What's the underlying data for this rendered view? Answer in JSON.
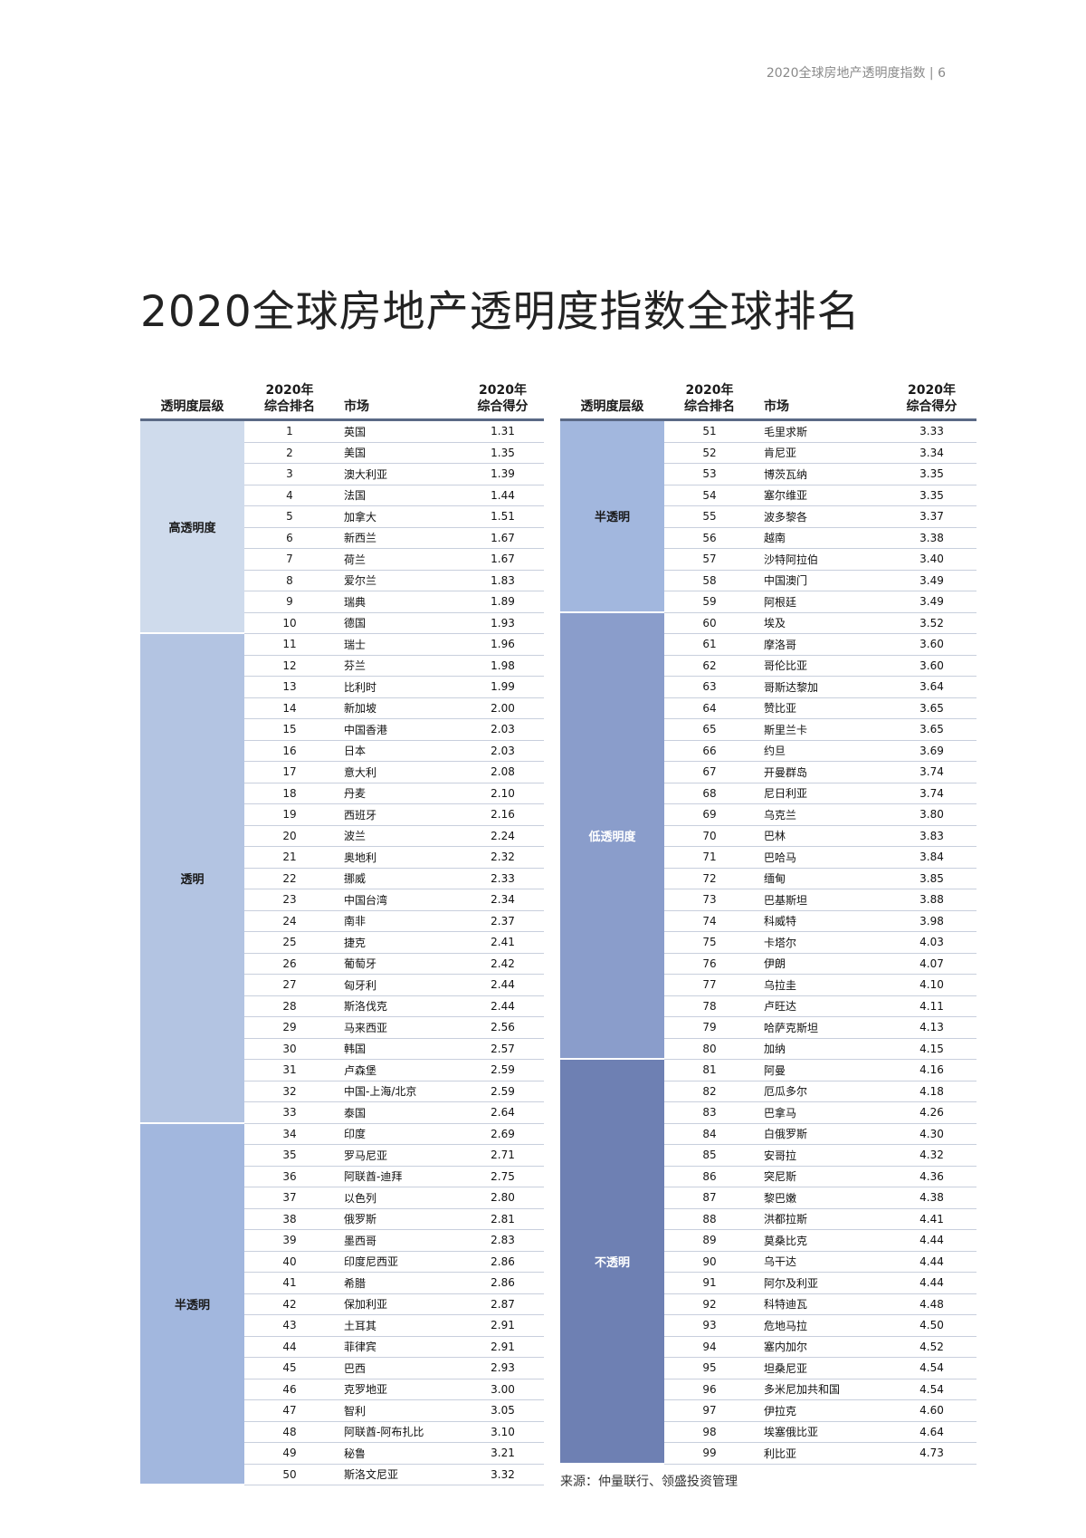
{
  "page_header": "2020全球房地产透明度指数 | 6",
  "title": "2020全球房地产透明度指数全球排名",
  "columns": {
    "tier": "透明度层级",
    "rank_l1": "2020年",
    "rank_l2": "综合排名",
    "market": "市场",
    "score_l1": "2020年",
    "score_l2": "综合得分"
  },
  "tier_colors": {
    "高透明度": "#cfdbec",
    "透明": "#b3c4e2",
    "半透明": "#a2b7de",
    "低透明度": "#8a9dcb",
    "不透明": "#6e80b3"
  },
  "left_tiers": [
    {
      "label": "高透明度",
      "count": 10
    },
    {
      "label": "透明",
      "count": 23
    },
    {
      "label": "半透明",
      "count": 17
    }
  ],
  "right_tiers": [
    {
      "label": "半透明",
      "count": 9
    },
    {
      "label": "低透明度",
      "count": 21
    },
    {
      "label": "不透明",
      "count": 19
    }
  ],
  "left_rows": [
    {
      "rank": "1",
      "market": "英国",
      "score": "1.31"
    },
    {
      "rank": "2",
      "market": "美国",
      "score": "1.35"
    },
    {
      "rank": "3",
      "market": "澳大利亚",
      "score": "1.39"
    },
    {
      "rank": "4",
      "market": "法国",
      "score": "1.44"
    },
    {
      "rank": "5",
      "market": "加拿大",
      "score": "1.51"
    },
    {
      "rank": "6",
      "market": "新西兰",
      "score": "1.67"
    },
    {
      "rank": "7",
      "market": "荷兰",
      "score": "1.67"
    },
    {
      "rank": "8",
      "market": "爱尔兰",
      "score": "1.83"
    },
    {
      "rank": "9",
      "market": "瑞典",
      "score": "1.89"
    },
    {
      "rank": "10",
      "market": "德国",
      "score": "1.93"
    },
    {
      "rank": "11",
      "market": "瑞士",
      "score": "1.96"
    },
    {
      "rank": "12",
      "market": "芬兰",
      "score": "1.98"
    },
    {
      "rank": "13",
      "market": "比利时",
      "score": "1.99"
    },
    {
      "rank": "14",
      "market": "新加坡",
      "score": "2.00"
    },
    {
      "rank": "15",
      "market": "中国香港",
      "score": "2.03"
    },
    {
      "rank": "16",
      "market": "日本",
      "score": "2.03"
    },
    {
      "rank": "17",
      "market": "意大利",
      "score": "2.08"
    },
    {
      "rank": "18",
      "market": "丹麦",
      "score": "2.10"
    },
    {
      "rank": "19",
      "market": "西班牙",
      "score": "2.16"
    },
    {
      "rank": "20",
      "market": "波兰",
      "score": "2.24"
    },
    {
      "rank": "21",
      "market": "奥地利",
      "score": "2.32"
    },
    {
      "rank": "22",
      "market": "挪威",
      "score": "2.33"
    },
    {
      "rank": "23",
      "market": "中国台湾",
      "score": "2.34"
    },
    {
      "rank": "24",
      "market": "南非",
      "score": "2.37"
    },
    {
      "rank": "25",
      "market": "捷克",
      "score": "2.41"
    },
    {
      "rank": "26",
      "market": "葡萄牙",
      "score": "2.42"
    },
    {
      "rank": "27",
      "market": "匈牙利",
      "score": "2.44"
    },
    {
      "rank": "28",
      "market": "斯洛伐克",
      "score": "2.44"
    },
    {
      "rank": "29",
      "market": "马来西亚",
      "score": "2.56"
    },
    {
      "rank": "30",
      "market": "韩国",
      "score": "2.57"
    },
    {
      "rank": "31",
      "market": "卢森堡",
      "score": "2.59"
    },
    {
      "rank": "32",
      "market": "中国-上海/北京",
      "score": "2.59"
    },
    {
      "rank": "33",
      "market": "泰国",
      "score": "2.64"
    },
    {
      "rank": "34",
      "market": "印度",
      "score": "2.69"
    },
    {
      "rank": "35",
      "market": "罗马尼亚",
      "score": "2.71"
    },
    {
      "rank": "36",
      "market": "阿联酋-迪拜",
      "score": "2.75"
    },
    {
      "rank": "37",
      "market": "以色列",
      "score": "2.80"
    },
    {
      "rank": "38",
      "market": "俄罗斯",
      "score": "2.81"
    },
    {
      "rank": "39",
      "market": "墨西哥",
      "score": "2.83"
    },
    {
      "rank": "40",
      "market": "印度尼西亚",
      "score": "2.86"
    },
    {
      "rank": "41",
      "market": "希腊",
      "score": "2.86"
    },
    {
      "rank": "42",
      "market": "保加利亚",
      "score": "2.87"
    },
    {
      "rank": "43",
      "market": "土耳其",
      "score": "2.91"
    },
    {
      "rank": "44",
      "market": "菲律宾",
      "score": "2.91"
    },
    {
      "rank": "45",
      "market": "巴西",
      "score": "2.93"
    },
    {
      "rank": "46",
      "market": "克罗地亚",
      "score": "3.00"
    },
    {
      "rank": "47",
      "market": "智利",
      "score": "3.05"
    },
    {
      "rank": "48",
      "market": "阿联酋-阿布扎比",
      "score": "3.10"
    },
    {
      "rank": "49",
      "market": "秘鲁",
      "score": "3.21"
    },
    {
      "rank": "50",
      "market": "斯洛文尼亚",
      "score": "3.32"
    }
  ],
  "right_rows": [
    {
      "rank": "51",
      "market": "毛里求斯",
      "score": "3.33"
    },
    {
      "rank": "52",
      "market": "肯尼亚",
      "score": "3.34"
    },
    {
      "rank": "53",
      "market": "博茨瓦纳",
      "score": "3.35"
    },
    {
      "rank": "54",
      "market": "塞尔维亚",
      "score": "3.35"
    },
    {
      "rank": "55",
      "market": "波多黎各",
      "score": "3.37"
    },
    {
      "rank": "56",
      "market": "越南",
      "score": "3.38"
    },
    {
      "rank": "57",
      "market": "沙特阿拉伯",
      "score": "3.40"
    },
    {
      "rank": "58",
      "market": "中国澳门",
      "score": "3.49"
    },
    {
      "rank": "59",
      "market": "阿根廷",
      "score": "3.49"
    },
    {
      "rank": "60",
      "market": "埃及",
      "score": "3.52"
    },
    {
      "rank": "61",
      "market": "摩洛哥",
      "score": "3.60"
    },
    {
      "rank": "62",
      "market": "哥伦比亚",
      "score": "3.60"
    },
    {
      "rank": "63",
      "market": "哥斯达黎加",
      "score": "3.64"
    },
    {
      "rank": "64",
      "market": "赞比亚",
      "score": "3.65"
    },
    {
      "rank": "65",
      "market": "斯里兰卡",
      "score": "3.65"
    },
    {
      "rank": "66",
      "market": "约旦",
      "score": "3.69"
    },
    {
      "rank": "67",
      "market": "开曼群岛",
      "score": "3.74"
    },
    {
      "rank": "68",
      "market": "尼日利亚",
      "score": "3.74"
    },
    {
      "rank": "69",
      "market": "乌克兰",
      "score": "3.80"
    },
    {
      "rank": "70",
      "market": "巴林",
      "score": "3.83"
    },
    {
      "rank": "71",
      "market": "巴哈马",
      "score": "3.84"
    },
    {
      "rank": "72",
      "market": "缅甸",
      "score": "3.85"
    },
    {
      "rank": "73",
      "market": "巴基斯坦",
      "score": "3.88"
    },
    {
      "rank": "74",
      "market": "科威特",
      "score": "3.98"
    },
    {
      "rank": "75",
      "market": "卡塔尔",
      "score": "4.03"
    },
    {
      "rank": "76",
      "market": "伊朗",
      "score": "4.07"
    },
    {
      "rank": "77",
      "market": "乌拉圭",
      "score": "4.10"
    },
    {
      "rank": "78",
      "market": "卢旺达",
      "score": "4.11"
    },
    {
      "rank": "79",
      "market": "哈萨克斯坦",
      "score": "4.13"
    },
    {
      "rank": "80",
      "market": "加纳",
      "score": "4.15"
    },
    {
      "rank": "81",
      "market": "阿曼",
      "score": "4.16"
    },
    {
      "rank": "82",
      "market": "厄瓜多尔",
      "score": "4.18"
    },
    {
      "rank": "83",
      "market": "巴拿马",
      "score": "4.26"
    },
    {
      "rank": "84",
      "market": "白俄罗斯",
      "score": "4.30"
    },
    {
      "rank": "85",
      "market": "安哥拉",
      "score": "4.32"
    },
    {
      "rank": "86",
      "market": "突尼斯",
      "score": "4.36"
    },
    {
      "rank": "87",
      "market": "黎巴嫩",
      "score": "4.38"
    },
    {
      "rank": "88",
      "market": "洪都拉斯",
      "score": "4.41"
    },
    {
      "rank": "89",
      "market": "莫桑比克",
      "score": "4.44"
    },
    {
      "rank": "90",
      "market": "乌干达",
      "score": "4.44"
    },
    {
      "rank": "91",
      "market": "阿尔及利亚",
      "score": "4.44"
    },
    {
      "rank": "92",
      "market": "科特迪瓦",
      "score": "4.48"
    },
    {
      "rank": "93",
      "market": "危地马拉",
      "score": "4.50"
    },
    {
      "rank": "94",
      "market": "塞内加尔",
      "score": "4.52"
    },
    {
      "rank": "95",
      "market": "坦桑尼亚",
      "score": "4.54"
    },
    {
      "rank": "96",
      "market": "多米尼加共和国",
      "score": "4.54"
    },
    {
      "rank": "97",
      "market": "伊拉克",
      "score": "4.60"
    },
    {
      "rank": "98",
      "market": "埃塞俄比亚",
      "score": "4.64"
    },
    {
      "rank": "99",
      "market": "利比亚",
      "score": "4.73"
    }
  ],
  "source": "来源：仲量联行、领盛投资管理"
}
